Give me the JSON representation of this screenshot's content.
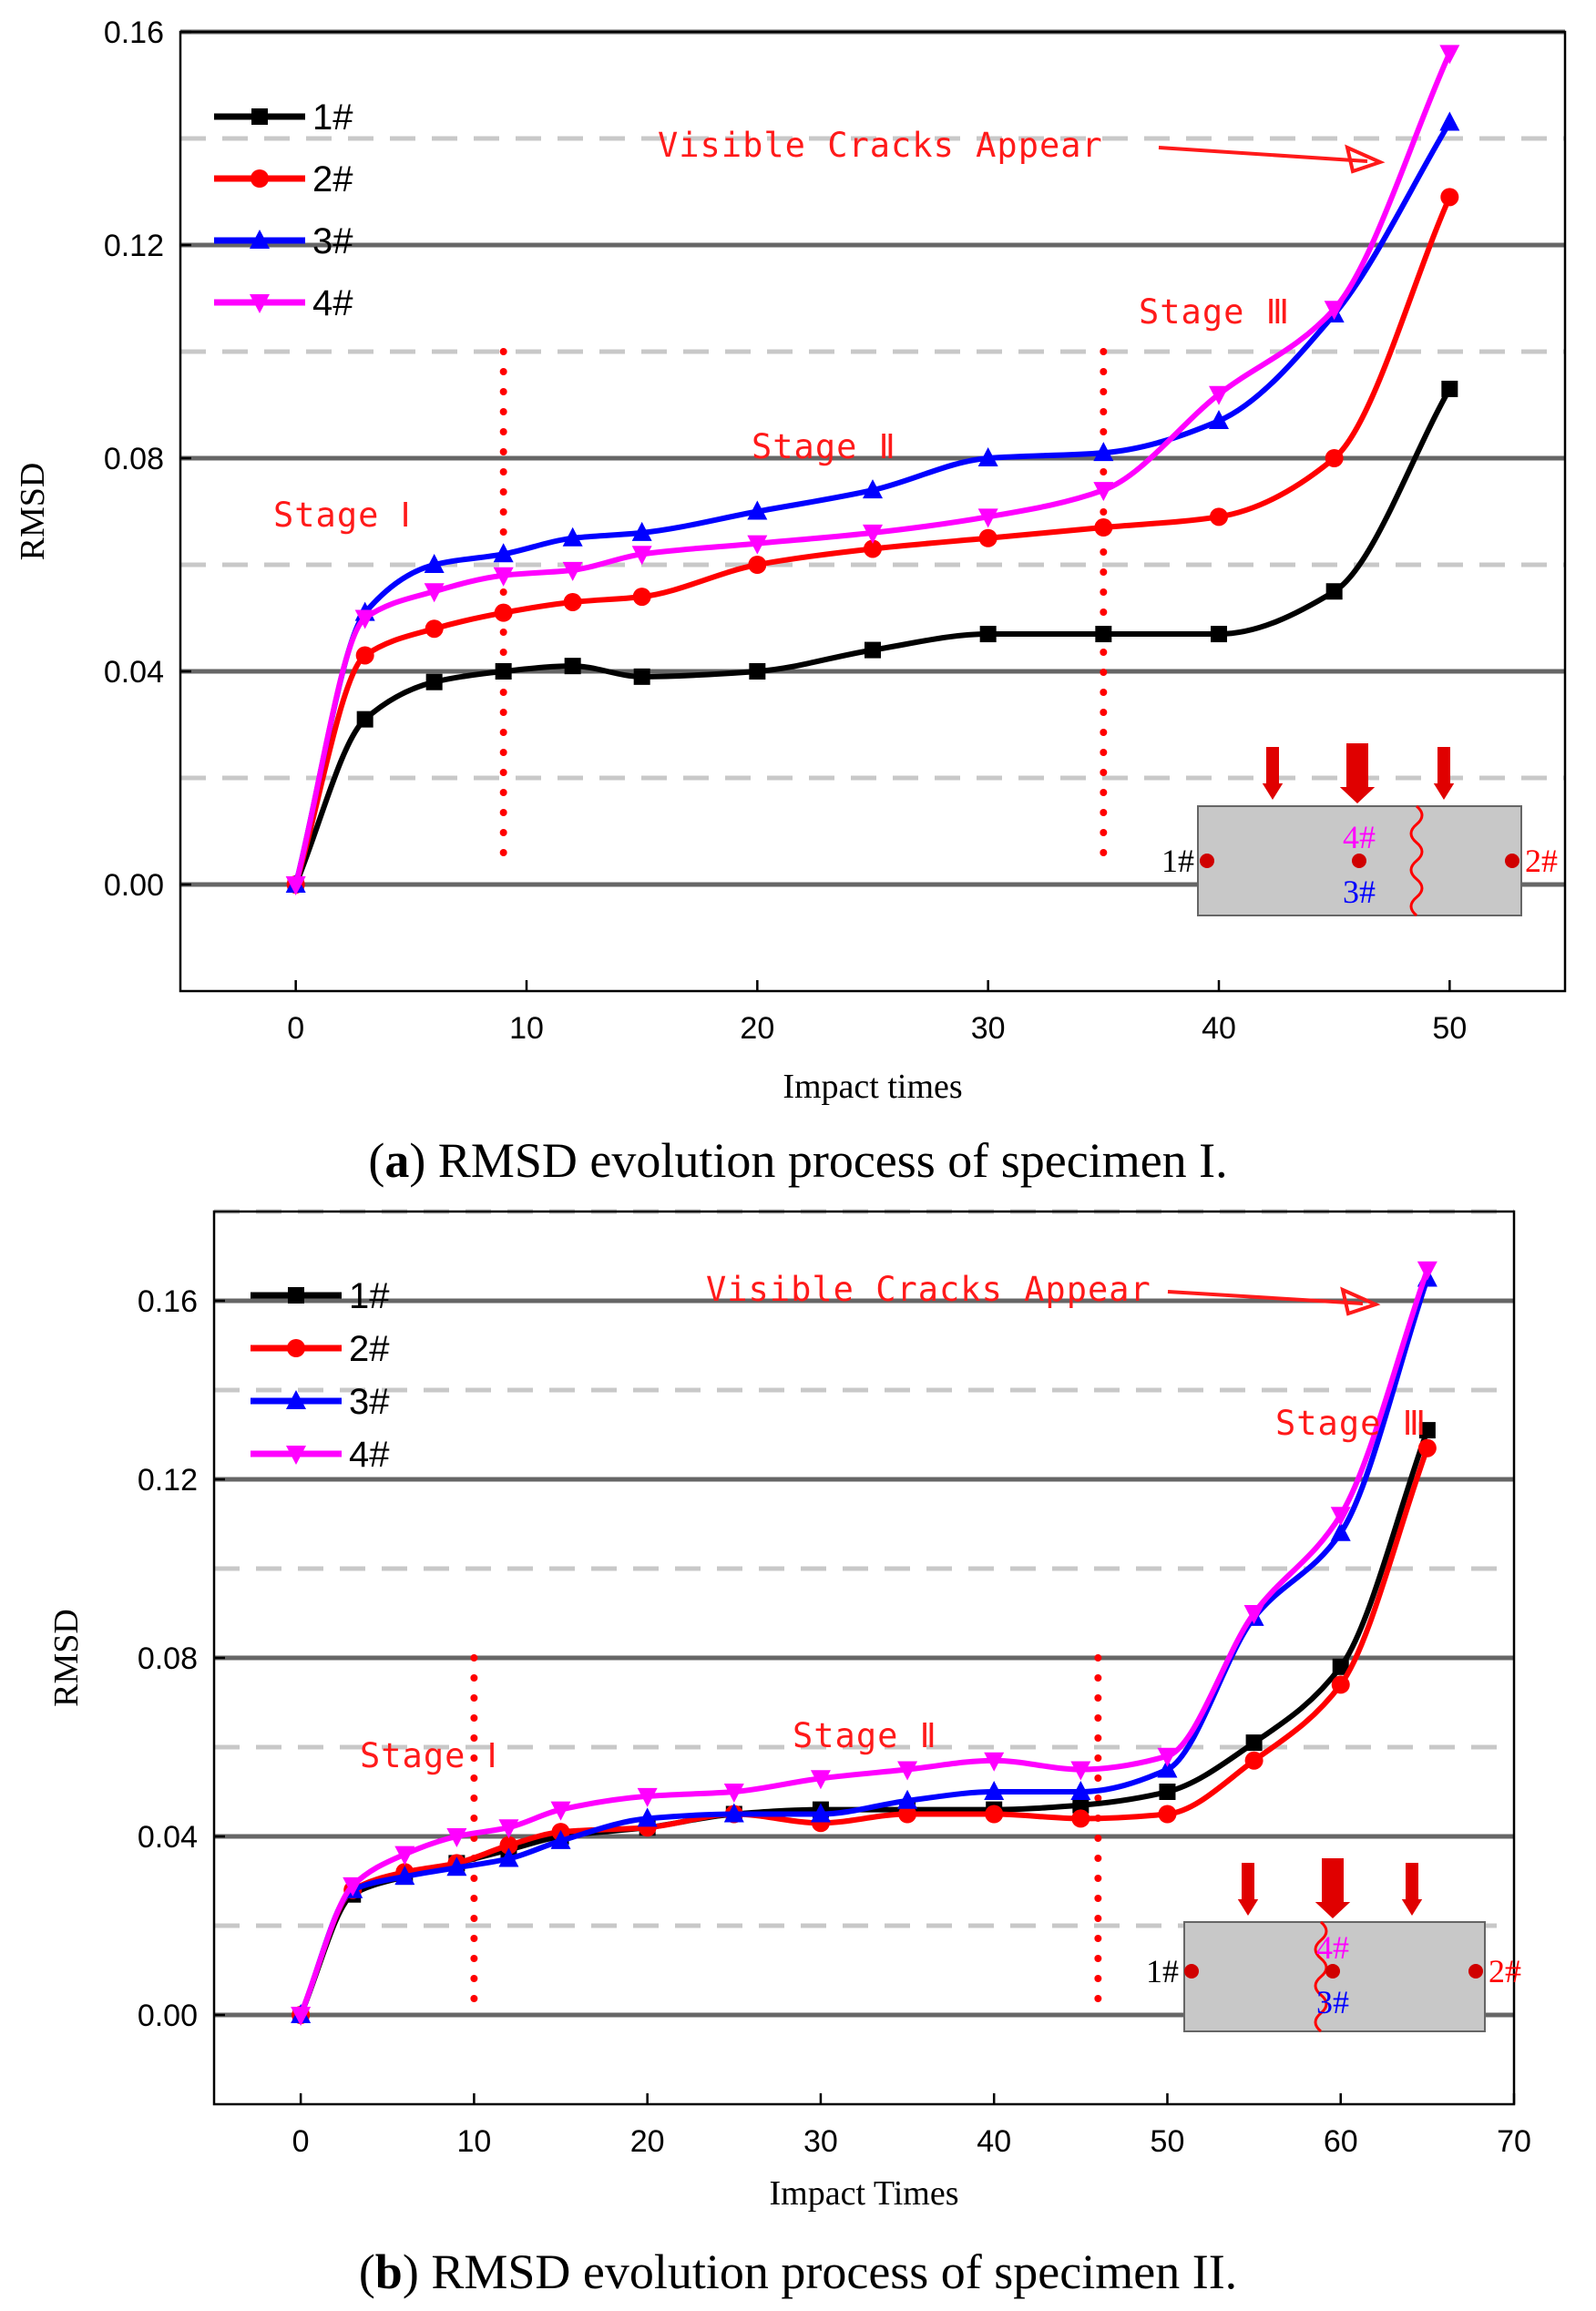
{
  "colors": {
    "s1": "#000000",
    "s2": "#ff0000",
    "s3": "#0000ff",
    "s4": "#ff00ff",
    "annotation": "#ff1a1a",
    "grid_major": "#666666",
    "grid_minor": "#c8c8c8",
    "inset_fill": "#c8c8c8"
  },
  "chart_data": [
    {
      "type": "line",
      "caption_label": "a",
      "caption": ") RMSD evolution process of specimen I.",
      "xlabel": "Impact times",
      "ylabel": "RMSD",
      "xlim": [
        -5,
        55
      ],
      "ylim": [
        -0.02,
        0.16
      ],
      "xticks": [
        "0",
        "10",
        "20",
        "30",
        "40",
        "50"
      ],
      "yticks": [
        "0.00",
        "0.04",
        "0.08",
        "0.12",
        "0.16"
      ],
      "stage_dividers": [
        9,
        35
      ],
      "annotations": {
        "cracks": "Visible Cracks Appear",
        "stage1": "Stage Ⅰ",
        "stage2": "Stage Ⅱ",
        "stage3": "Stage Ⅲ"
      },
      "series": [
        {
          "name": "1#",
          "marker": "square",
          "x": [
            0,
            3,
            6,
            9,
            12,
            15,
            20,
            25,
            30,
            35,
            40,
            45,
            50
          ],
          "y": [
            0.0,
            0.031,
            0.038,
            0.04,
            0.041,
            0.039,
            0.04,
            0.044,
            0.047,
            0.047,
            0.047,
            0.055,
            0.093
          ]
        },
        {
          "name": "2#",
          "marker": "circle",
          "x": [
            0,
            3,
            6,
            9,
            12,
            15,
            20,
            25,
            30,
            35,
            40,
            45,
            50
          ],
          "y": [
            0.0,
            0.043,
            0.048,
            0.051,
            0.053,
            0.054,
            0.06,
            0.063,
            0.065,
            0.067,
            0.069,
            0.08,
            0.129
          ]
        },
        {
          "name": "3#",
          "marker": "triangle-up",
          "x": [
            0,
            3,
            6,
            9,
            12,
            15,
            20,
            25,
            30,
            35,
            40,
            45,
            50
          ],
          "y": [
            0.0,
            0.051,
            0.06,
            0.062,
            0.065,
            0.066,
            0.07,
            0.074,
            0.08,
            0.081,
            0.087,
            0.107,
            0.143
          ]
        },
        {
          "name": "4#",
          "marker": "triangle-down",
          "x": [
            0,
            3,
            6,
            9,
            12,
            15,
            20,
            25,
            30,
            35,
            40,
            45,
            50
          ],
          "y": [
            0.0,
            0.05,
            0.055,
            0.058,
            0.059,
            0.062,
            0.064,
            0.066,
            0.069,
            0.074,
            0.092,
            0.108,
            0.156
          ]
        }
      ],
      "inset": {
        "p1": "1#",
        "p2": "2#",
        "p3": "3#",
        "p4": "4#"
      }
    },
    {
      "type": "line",
      "caption_label": "b",
      "caption": ") RMSD evolution process of specimen II.",
      "xlabel": "Impact Times",
      "ylabel": "RMSD",
      "xlim": [
        -5,
        70
      ],
      "ylim": [
        -0.02,
        0.18
      ],
      "xticks": [
        "0",
        "10",
        "20",
        "30",
        "40",
        "50",
        "60",
        "70"
      ],
      "yticks": [
        "0.00",
        "0.04",
        "0.08",
        "0.12",
        "0.16"
      ],
      "stage_dividers": [
        10,
        46
      ],
      "annotations": {
        "cracks": "Visible Cracks Appear",
        "stage1": "Stage Ⅰ",
        "stage2": "Stage Ⅱ",
        "stage3": "Stage Ⅲ"
      },
      "series": [
        {
          "name": "1#",
          "marker": "square",
          "x": [
            0,
            3,
            6,
            9,
            12,
            15,
            20,
            25,
            30,
            35,
            40,
            45,
            50,
            55,
            60,
            65
          ],
          "y": [
            0.0,
            0.027,
            0.031,
            0.034,
            0.037,
            0.04,
            0.042,
            0.045,
            0.046,
            0.046,
            0.046,
            0.047,
            0.05,
            0.061,
            0.078,
            0.131
          ]
        },
        {
          "name": "2#",
          "marker": "circle",
          "x": [
            0,
            3,
            6,
            9,
            12,
            15,
            20,
            25,
            30,
            35,
            40,
            45,
            50,
            55,
            60,
            65
          ],
          "y": [
            0.0,
            0.028,
            0.032,
            0.034,
            0.038,
            0.041,
            0.042,
            0.045,
            0.043,
            0.045,
            0.045,
            0.044,
            0.045,
            0.057,
            0.074,
            0.127
          ]
        },
        {
          "name": "3#",
          "marker": "triangle-up",
          "x": [
            0,
            3,
            6,
            9,
            12,
            15,
            20,
            25,
            30,
            35,
            40,
            45,
            50,
            55,
            60,
            65
          ],
          "y": [
            0.0,
            0.028,
            0.031,
            0.033,
            0.035,
            0.039,
            0.044,
            0.045,
            0.045,
            0.048,
            0.05,
            0.05,
            0.055,
            0.089,
            0.108,
            0.165
          ]
        },
        {
          "name": "4#",
          "marker": "triangle-down",
          "x": [
            0,
            3,
            6,
            9,
            12,
            15,
            20,
            25,
            30,
            35,
            40,
            45,
            50,
            55,
            60,
            65
          ],
          "y": [
            0.0,
            0.029,
            0.036,
            0.04,
            0.042,
            0.046,
            0.049,
            0.05,
            0.053,
            0.055,
            0.057,
            0.055,
            0.058,
            0.09,
            0.112,
            0.167
          ]
        }
      ],
      "inset": {
        "p1": "1#",
        "p2": "2#",
        "p3": "3#",
        "p4": "4#"
      }
    }
  ]
}
